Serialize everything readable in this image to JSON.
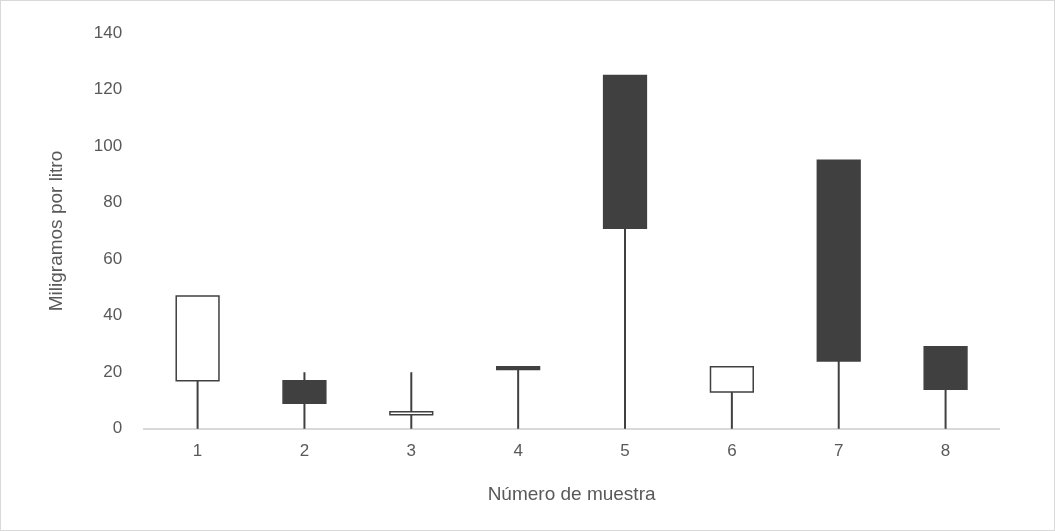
{
  "chart_data": {
    "type": "candlestick",
    "xlabel": "Número de muestra",
    "ylabel": "Miligramos por litro",
    "categories": [
      "1",
      "2",
      "3",
      "4",
      "5",
      "6",
      "7",
      "8"
    ],
    "ohlc": [
      [
        17,
        47,
        0,
        47
      ],
      [
        17,
        20,
        0,
        9
      ],
      [
        5,
        20,
        0,
        6
      ],
      [
        22,
        22,
        0,
        21
      ],
      [
        125,
        125,
        0,
        71
      ],
      [
        13,
        22,
        0,
        22
      ],
      [
        95,
        95,
        0,
        24
      ],
      [
        29,
        29,
        0,
        14
      ]
    ],
    "colors": [
      "#ffffff",
      "#404040",
      "#ffffff",
      "#404040",
      "#404040",
      "#ffffff",
      "#404040",
      "#404040"
    ],
    "ylim": [
      0,
      140
    ],
    "yticks": [
      0,
      20,
      40,
      60,
      80,
      100,
      120,
      140
    ],
    "grid": false
  }
}
